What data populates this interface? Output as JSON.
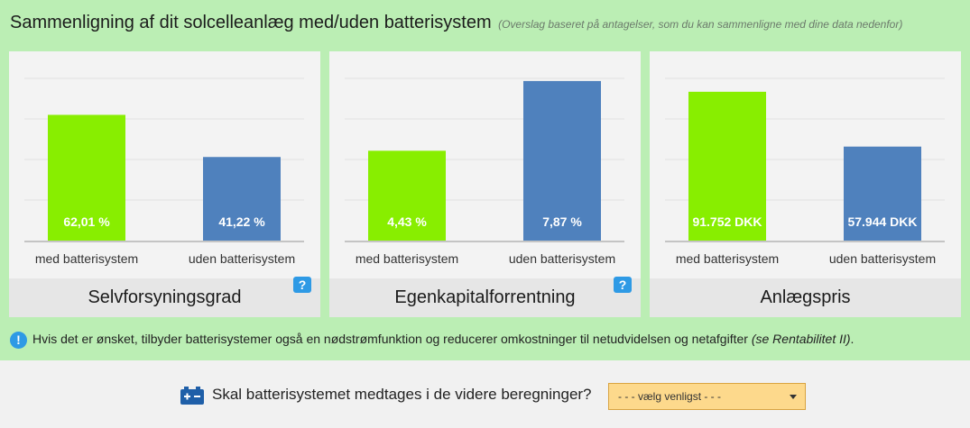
{
  "header": {
    "title": "Sammenligning af dit solcelleanlæg med/uden batterisystem",
    "note": "(Overslag baseret på antagelser, som du kan sammenligne med dine data nedenfor)"
  },
  "colors": {
    "panel": "#bbeeb4",
    "with_battery": "#88ee00",
    "without_battery": "#4f81bd",
    "help_badge": "#2e9ae5",
    "select_bg": "#fdd98c"
  },
  "chart_data": [
    {
      "type": "bar",
      "title": "Selvforsyningsgrad",
      "categories": [
        "med batterisystem",
        "uden batterisystem"
      ],
      "values": [
        62.01,
        41.22
      ],
      "value_labels": [
        "62,01 %",
        "41,22 %"
      ],
      "ylim": [
        0,
        80
      ],
      "grid": true,
      "has_help": true
    },
    {
      "type": "bar",
      "title": "Egenkapitalforrentning",
      "categories": [
        "med batterisystem",
        "uden batterisystem"
      ],
      "values": [
        4.43,
        7.87
      ],
      "value_labels": [
        "4,43 %",
        "7,87 %"
      ],
      "ylim": [
        0,
        8
      ],
      "grid": true,
      "has_help": true
    },
    {
      "type": "bar",
      "title": "Anlægspris",
      "categories": [
        "med batterisystem",
        "uden batterisystem"
      ],
      "values": [
        91752,
        57944
      ],
      "value_labels": [
        "91.752 DKK",
        "57.944 DKK"
      ],
      "ylim": [
        0,
        100000
      ],
      "grid": true,
      "has_help": false
    }
  ],
  "help_label": "?",
  "info": {
    "icon": "info-icon",
    "text": "Hvis det er ønsket, tilbyder batterisystemer også en nødstrømfunktion og reducerer omkostninger til netudvidelsen og netafgifter ",
    "reference": "(se Rentabilitet II)",
    "suffix": "."
  },
  "question": {
    "icon": "battery-icon",
    "text": "Skal batterisystemet medtages i de videre beregninger?",
    "select_value": "- - - vælg venligst - - -"
  }
}
